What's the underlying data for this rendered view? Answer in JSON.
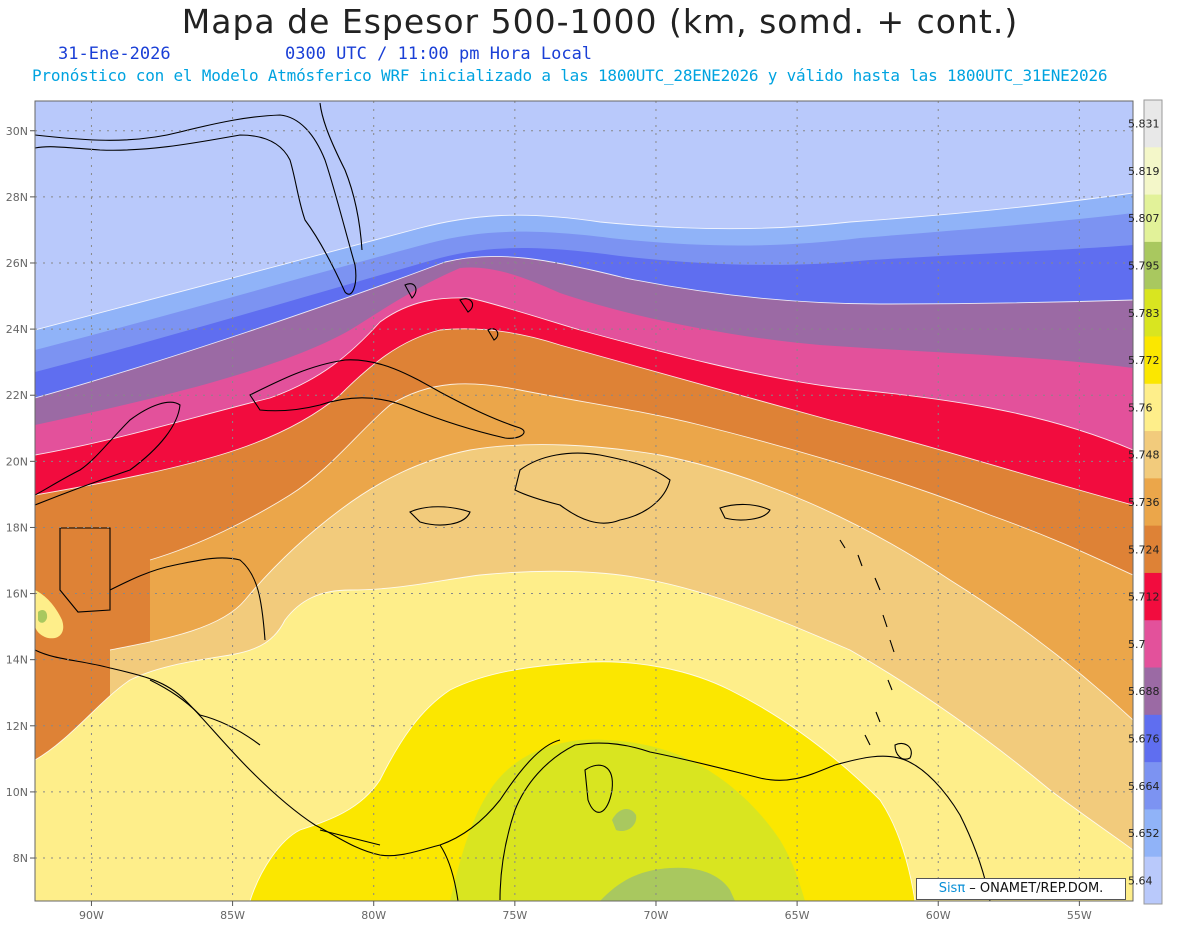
{
  "header": {
    "title": "Mapa de Espesor 500-1000 (km, somd. + cont.)",
    "date": "31-Ene-2026",
    "time": "0300 UTC / 11:00 pm Hora Local",
    "description": "Pronóstico con el Modelo Atmósferico WRF inicializado a las 1800UTC_28ENE2026 y válido hasta las  1800UTC_31ENE2026"
  },
  "map": {
    "lat_labels": [
      "30N",
      "28N",
      "26N",
      "24N",
      "22N",
      "20N",
      "18N",
      "16N",
      "14N",
      "12N",
      "10N",
      "8N"
    ],
    "lon_labels": [
      "90W",
      "85W",
      "80W",
      "75W",
      "70W",
      "65W",
      "60W",
      "55W"
    ],
    "lat_range": [
      6.7,
      30.9
    ],
    "lon_range": [
      -92,
      -53.1
    ],
    "grid_style": "dotted gray"
  },
  "colorbar": {
    "labels": [
      "5.831",
      "5.819",
      "5.807",
      "5.795",
      "5.783",
      "5.772",
      "5.76",
      "5.748",
      "5.736",
      "5.724",
      "5.712",
      "5.7",
      "5.688",
      "5.676",
      "5.664",
      "5.652",
      "5.64"
    ],
    "colors": [
      "#e8e8e8",
      "#f4f7c9",
      "#e2f299",
      "#a9c85f",
      "#d9e520",
      "#fbe700",
      "#feee8a",
      "#f2cb7c",
      "#eba64a",
      "#de8236",
      "#f20c3e",
      "#e3519b",
      "#9b6aa4",
      "#5f6ef0",
      "#7c93f2",
      "#90b3f8",
      "#b9c9fb"
    ]
  },
  "credit": {
    "brand": "Sisπ",
    "text": " – ONAMET/REP.DOM."
  }
}
